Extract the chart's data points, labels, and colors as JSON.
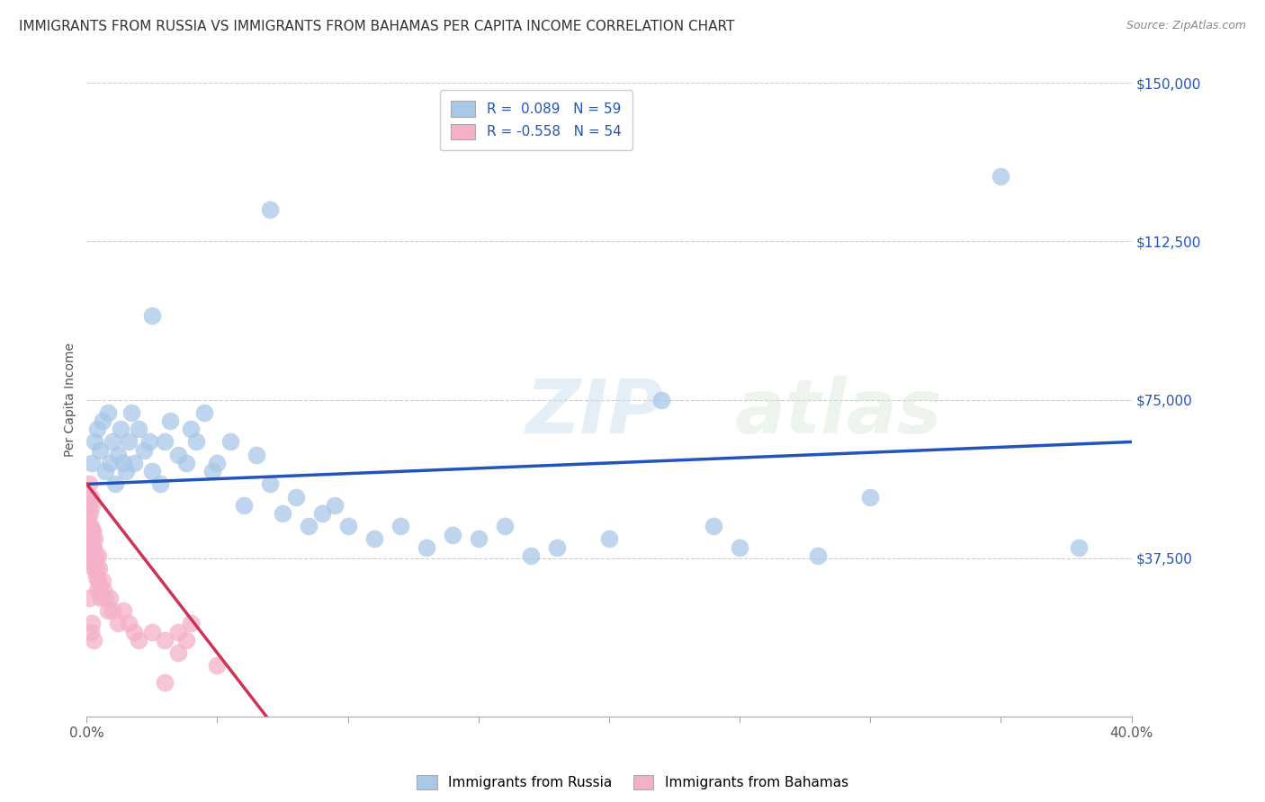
{
  "title": "IMMIGRANTS FROM RUSSIA VS IMMIGRANTS FROM BAHAMAS PER CAPITA INCOME CORRELATION CHART",
  "source": "Source: ZipAtlas.com",
  "ylabel": "Per Capita Income",
  "yticks": [
    0,
    37500,
    75000,
    112500,
    150000
  ],
  "ytick_labels": [
    "",
    "$37,500",
    "$75,000",
    "$112,500",
    "$150,000"
  ],
  "xmin": 0.0,
  "xmax": 40.0,
  "ymin": 0,
  "ymax": 150000,
  "russia_R": 0.089,
  "russia_N": 59,
  "bahamas_R": -0.558,
  "bahamas_N": 54,
  "russia_color": "#a8c8e8",
  "bahamas_color": "#f4b0c8",
  "russia_line_color": "#2255bb",
  "bahamas_line_color": "#cc3355",
  "russia_scatter": [
    [
      0.2,
      60000
    ],
    [
      0.3,
      65000
    ],
    [
      0.4,
      68000
    ],
    [
      0.5,
      63000
    ],
    [
      0.6,
      70000
    ],
    [
      0.7,
      58000
    ],
    [
      0.8,
      72000
    ],
    [
      0.9,
      60000
    ],
    [
      1.0,
      65000
    ],
    [
      1.1,
      55000
    ],
    [
      1.2,
      62000
    ],
    [
      1.3,
      68000
    ],
    [
      1.4,
      60000
    ],
    [
      1.5,
      58000
    ],
    [
      1.6,
      65000
    ],
    [
      1.7,
      72000
    ],
    [
      1.8,
      60000
    ],
    [
      2.0,
      68000
    ],
    [
      2.2,
      63000
    ],
    [
      2.4,
      65000
    ],
    [
      2.5,
      58000
    ],
    [
      2.8,
      55000
    ],
    [
      3.0,
      65000
    ],
    [
      3.2,
      70000
    ],
    [
      3.5,
      62000
    ],
    [
      3.8,
      60000
    ],
    [
      4.0,
      68000
    ],
    [
      4.2,
      65000
    ],
    [
      4.5,
      72000
    ],
    [
      4.8,
      58000
    ],
    [
      5.0,
      60000
    ],
    [
      5.5,
      65000
    ],
    [
      6.0,
      50000
    ],
    [
      6.5,
      62000
    ],
    [
      7.0,
      55000
    ],
    [
      7.5,
      48000
    ],
    [
      8.0,
      52000
    ],
    [
      8.5,
      45000
    ],
    [
      9.0,
      48000
    ],
    [
      9.5,
      50000
    ],
    [
      10.0,
      45000
    ],
    [
      11.0,
      42000
    ],
    [
      12.0,
      45000
    ],
    [
      13.0,
      40000
    ],
    [
      14.0,
      43000
    ],
    [
      15.0,
      42000
    ],
    [
      16.0,
      45000
    ],
    [
      17.0,
      38000
    ],
    [
      18.0,
      40000
    ],
    [
      20.0,
      42000
    ],
    [
      22.0,
      75000
    ],
    [
      24.0,
      45000
    ],
    [
      25.0,
      40000
    ],
    [
      28.0,
      38000
    ],
    [
      30.0,
      52000
    ],
    [
      7.0,
      120000
    ],
    [
      35.0,
      128000
    ],
    [
      38.0,
      40000
    ],
    [
      2.5,
      95000
    ]
  ],
  "bahamas_scatter": [
    [
      0.05,
      52000
    ],
    [
      0.07,
      48000
    ],
    [
      0.08,
      55000
    ],
    [
      0.09,
      45000
    ],
    [
      0.1,
      50000
    ],
    [
      0.11,
      42000
    ],
    [
      0.12,
      48000
    ],
    [
      0.13,
      44000
    ],
    [
      0.14,
      40000
    ],
    [
      0.15,
      52000
    ],
    [
      0.16,
      45000
    ],
    [
      0.17,
      38000
    ],
    [
      0.18,
      42000
    ],
    [
      0.19,
      50000
    ],
    [
      0.2,
      44000
    ],
    [
      0.22,
      40000
    ],
    [
      0.23,
      38000
    ],
    [
      0.24,
      44000
    ],
    [
      0.25,
      36000
    ],
    [
      0.27,
      40000
    ],
    [
      0.28,
      35000
    ],
    [
      0.3,
      42000
    ],
    [
      0.32,
      38000
    ],
    [
      0.35,
      35000
    ],
    [
      0.38,
      33000
    ],
    [
      0.4,
      30000
    ],
    [
      0.42,
      38000
    ],
    [
      0.45,
      32000
    ],
    [
      0.48,
      35000
    ],
    [
      0.5,
      30000
    ],
    [
      0.55,
      28000
    ],
    [
      0.6,
      32000
    ],
    [
      0.65,
      30000
    ],
    [
      0.7,
      28000
    ],
    [
      0.8,
      25000
    ],
    [
      0.9,
      28000
    ],
    [
      1.0,
      25000
    ],
    [
      1.2,
      22000
    ],
    [
      1.4,
      25000
    ],
    [
      1.6,
      22000
    ],
    [
      1.8,
      20000
    ],
    [
      2.0,
      18000
    ],
    [
      2.5,
      20000
    ],
    [
      3.0,
      18000
    ],
    [
      3.5,
      15000
    ],
    [
      4.0,
      22000
    ],
    [
      0.2,
      22000
    ],
    [
      0.25,
      18000
    ],
    [
      0.15,
      20000
    ],
    [
      0.1,
      28000
    ],
    [
      3.5,
      20000
    ],
    [
      3.8,
      18000
    ],
    [
      5.0,
      12000
    ],
    [
      3.0,
      8000
    ]
  ],
  "background_color": "#ffffff",
  "grid_color": "#cccccc",
  "title_fontsize": 11,
  "axis_label_fontsize": 10,
  "tick_fontsize": 10,
  "legend_fontsize": 11
}
